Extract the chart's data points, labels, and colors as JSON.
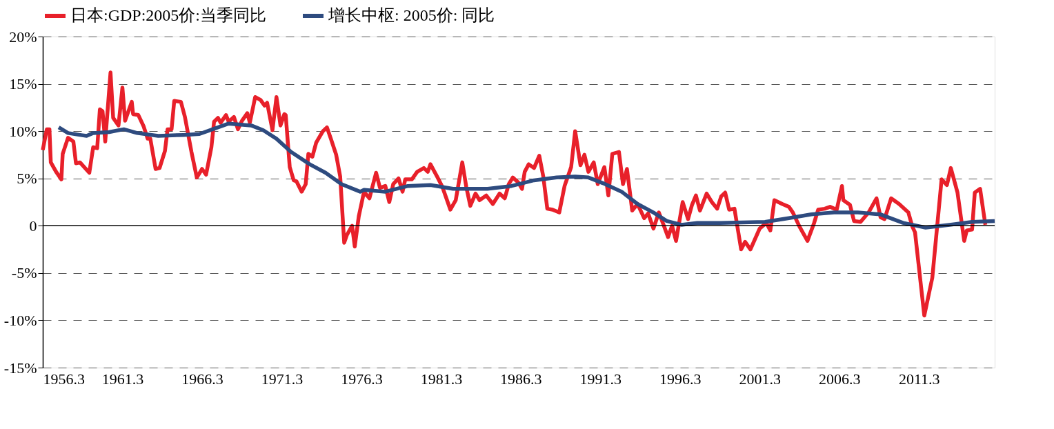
{
  "chart_data": {
    "type": "line",
    "legend": "top",
    "grid": "y",
    "line_style": "solid",
    "xlim": [
      "1956-03",
      "2015-12"
    ],
    "ylim": [
      -15,
      20
    ],
    "xticks": [
      {
        "value": "1956-03",
        "label": "1956.3"
      },
      {
        "value": "1961-03",
        "label": "1961.3"
      },
      {
        "value": "1966-03",
        "label": "1966.3"
      },
      {
        "value": "1971-03",
        "label": "1971.3"
      },
      {
        "value": "1976-03",
        "label": "1976.3"
      },
      {
        "value": "1981-03",
        "label": "1981.3"
      },
      {
        "value": "1986-03",
        "label": "1986.3"
      },
      {
        "value": "1991-03",
        "label": "1991.3"
      },
      {
        "value": "1996-03",
        "label": "1996.3"
      },
      {
        "value": "2001-03",
        "label": "2001.3"
      },
      {
        "value": "2006-03",
        "label": "2006.3"
      },
      {
        "value": "2011-03",
        "label": "2011.3"
      }
    ],
    "yticks": [
      {
        "value": -15,
        "label": "-15%"
      },
      {
        "value": -10,
        "label": "-10%"
      },
      {
        "value": -5,
        "label": "-5%"
      },
      0,
      {
        "value": 5,
        "label": "5%"
      },
      {
        "value": 10,
        "label": "10%"
      },
      {
        "value": 15,
        "label": "15%"
      },
      {
        "value": 20,
        "label": "20%"
      }
    ],
    "ref_lines": [
      {
        "axis": "y",
        "value": 0,
        "color": "#000000",
        "line_style": "solid"
      }
    ],
    "series": [
      {
        "name": "日本:GDP:2005价:当季同比",
        "color": "#e8202a",
        "x": [
          "1956-03",
          "1956-06",
          "1956-08",
          "1956-09",
          "1957-01",
          "1957-05",
          "1957-06",
          "1957-10",
          "1958-02",
          "1958-04",
          "1958-07",
          "1959-02",
          "1959-05",
          "1959-08",
          "1959-10",
          "1959-12",
          "1960-02",
          "1960-06",
          "1960-08",
          "1960-12",
          "1961-03",
          "1961-05",
          "1961-10",
          "1961-11",
          "1962-03",
          "1962-07",
          "1962-10",
          "1962-12",
          "1963-04",
          "1963-07",
          "1963-11",
          "1964-01",
          "1964-04",
          "1964-06",
          "1964-11",
          "1965-02",
          "1965-07",
          "1965-11",
          "1966-03",
          "1966-06",
          "1966-10",
          "1966-12",
          "1967-03",
          "1967-05",
          "1967-09",
          "1967-11",
          "1968-03",
          "1968-06",
          "1968-09",
          "1969-01",
          "1969-03",
          "1969-07",
          "1969-11",
          "1970-02",
          "1970-04",
          "1970-08",
          "1970-11",
          "1971-02",
          "1971-05",
          "1971-06",
          "1971-09",
          "1971-12",
          "1972-02",
          "1972-06",
          "1972-09",
          "1972-11",
          "1973-02",
          "1973-05",
          "1973-10",
          "1974-01",
          "1974-04",
          "1974-08",
          "1974-11",
          "1975-02",
          "1975-04",
          "1975-08",
          "1975-10",
          "1976-01",
          "1976-05",
          "1976-09",
          "1977-02",
          "1977-05",
          "1977-09",
          "1977-12",
          "1978-03",
          "1978-07",
          "1978-10",
          "1978-12",
          "1979-05",
          "1979-09",
          "1980-02",
          "1980-05",
          "1980-07",
          "1980-12",
          "1981-04",
          "1981-10",
          "1982-02",
          "1982-07",
          "1982-10",
          "1983-01",
          "1983-05",
          "1983-08",
          "1984-01",
          "1984-06",
          "1984-11",
          "1985-03",
          "1985-06",
          "1985-09",
          "1986-01",
          "1986-04",
          "1986-06",
          "1986-09",
          "1987-01",
          "1987-05",
          "1987-08",
          "1987-11",
          "1988-03",
          "1988-08",
          "1988-12",
          "1989-05",
          "1989-08",
          "1989-12",
          "1990-03",
          "1990-06",
          "1990-10",
          "1991-01",
          "1991-06",
          "1991-09",
          "1991-12",
          "1992-05",
          "1992-08",
          "1992-11",
          "1993-03",
          "1993-07",
          "1993-12",
          "1994-03",
          "1994-07",
          "1994-11",
          "1995-02",
          "1995-06",
          "1995-09",
          "1995-12",
          "1996-05",
          "1996-09",
          "1996-12",
          "1997-03",
          "1997-06",
          "1997-11",
          "1998-03",
          "1998-07",
          "1998-10",
          "1999-01",
          "1999-04",
          "1999-08",
          "2000-01",
          "2000-04",
          "2000-08",
          "2001-03",
          "2001-08",
          "2001-11",
          "2002-02",
          "2002-08",
          "2003-01",
          "2003-04",
          "2003-09",
          "2004-03",
          "2004-08",
          "2004-11",
          "2005-04",
          "2005-08",
          "2006-01",
          "2006-05",
          "2006-06",
          "2006-11",
          "2007-02",
          "2007-07",
          "2008-01",
          "2008-07",
          "2008-10",
          "2009-01",
          "2009-06",
          "2009-12",
          "2010-07",
          "2010-10",
          "2010-12",
          "2011-07",
          "2012-01",
          "2012-08",
          "2012-12",
          "2013-03",
          "2013-08",
          "2014-01",
          "2014-03",
          "2014-07",
          "2014-09",
          "2015-01",
          "2015-05"
        ],
        "values": [
          8.0,
          10.2,
          10.2,
          6.7,
          5.7,
          4.9,
          7.6,
          9.3,
          8.9,
          6.6,
          6.7,
          5.6,
          8.3,
          8.2,
          12.3,
          12.1,
          8.9,
          16.2,
          11.4,
          10.6,
          14.6,
          11.1,
          13.1,
          11.8,
          11.7,
          10.5,
          9.2,
          9.2,
          6.0,
          6.1,
          7.9,
          10.2,
          10.2,
          13.2,
          13.1,
          11.5,
          7.8,
          5.1,
          6.0,
          5.4,
          8.3,
          11.0,
          11.4,
          10.9,
          11.7,
          11.0,
          11.5,
          10.2,
          11.1,
          11.9,
          10.9,
          13.6,
          13.3,
          12.7,
          13.0,
          10.1,
          13.6,
          10.6,
          11.8,
          11.7,
          6.2,
          4.8,
          4.7,
          3.6,
          4.4,
          7.6,
          7.3,
          8.8,
          10.0,
          10.4,
          9.2,
          7.5,
          5.2,
          -1.8,
          -1.0,
          0.0,
          -2.2,
          1.0,
          3.6,
          2.9,
          5.6,
          4.0,
          4.2,
          2.5,
          4.4,
          5.0,
          3.6,
          4.9,
          4.9,
          5.7,
          6.1,
          5.7,
          6.5,
          5.2,
          4.1,
          1.7,
          2.7,
          6.7,
          4.1,
          2.1,
          3.4,
          2.7,
          3.2,
          2.3,
          3.4,
          2.9,
          4.4,
          5.1,
          4.6,
          3.9,
          5.7,
          6.5,
          6.1,
          7.4,
          5.2,
          1.8,
          1.7,
          1.4,
          4.2,
          6.2,
          10.0,
          6.4,
          7.5,
          5.7,
          6.7,
          4.4,
          6.2,
          3.2,
          7.6,
          7.8,
          4.4,
          6.0,
          1.6,
          2.3,
          0.8,
          1.3,
          -0.3,
          1.4,
          0.3,
          -1.2,
          0.0,
          -1.6,
          2.5,
          0.7,
          2.2,
          3.2,
          1.6,
          3.4,
          2.5,
          1.8,
          3.1,
          3.5,
          1.7,
          1.8,
          -2.5,
          -1.7,
          -2.5,
          -0.3,
          0.3,
          -0.5,
          2.7,
          2.3,
          2.0,
          1.4,
          -0.1,
          -1.6,
          0.3,
          1.7,
          1.8,
          2.0,
          1.7,
          4.2,
          2.7,
          2.2,
          0.5,
          0.4,
          1.4,
          2.9,
          0.9,
          0.7,
          2.9,
          2.3,
          1.4,
          -0.1,
          -0.7,
          -9.5,
          -5.5,
          4.9,
          4.3,
          6.1,
          3.5,
          -1.6,
          -0.5,
          -0.4,
          3.5,
          3.9,
          0.1
        ]
      },
      {
        "name": "增长中枢: 2005价: 同比",
        "color": "#2e4b7f",
        "x": [
          "1957-03",
          "1957-10",
          "1958-07",
          "1958-12",
          "1959-05",
          "1960-05",
          "1961-04",
          "1962-02",
          "1963-06",
          "1965-01",
          "1966-01",
          "1966-11",
          "1967-11",
          "1969-04",
          "1970-01",
          "1970-11",
          "1971-10",
          "1972-12",
          "1973-12",
          "1974-12",
          "1976-02",
          "1976-05",
          "1977-09",
          "1979-02",
          "1980-07",
          "1981-12",
          "1984-02",
          "1985-08",
          "1987-01",
          "1988-06",
          "1989-08",
          "1990-06",
          "1991-05",
          "1992-07",
          "1993-07",
          "1994-07",
          "1995-05",
          "1996-04",
          "1997-04",
          "1998-09",
          "2001-07",
          "2003-01",
          "2004-06",
          "2005-11",
          "2007-05",
          "2008-10",
          "2010-03",
          "2011-08",
          "2013-02",
          "2014-07",
          "2015-12"
        ],
        "values": [
          10.4,
          9.8,
          9.6,
          9.5,
          9.8,
          9.9,
          10.2,
          9.8,
          9.5,
          9.6,
          9.7,
          10.2,
          10.8,
          10.6,
          10.1,
          9.2,
          7.8,
          6.5,
          5.6,
          4.4,
          3.6,
          3.8,
          3.6,
          4.2,
          4.3,
          3.9,
          3.9,
          4.2,
          4.8,
          5.1,
          5.2,
          5.1,
          4.5,
          3.6,
          2.3,
          1.4,
          0.5,
          0.1,
          0.3,
          0.3,
          0.4,
          0.8,
          1.2,
          1.4,
          1.4,
          1.2,
          0.3,
          -0.2,
          0.1,
          0.4,
          0.5
        ]
      }
    ]
  }
}
